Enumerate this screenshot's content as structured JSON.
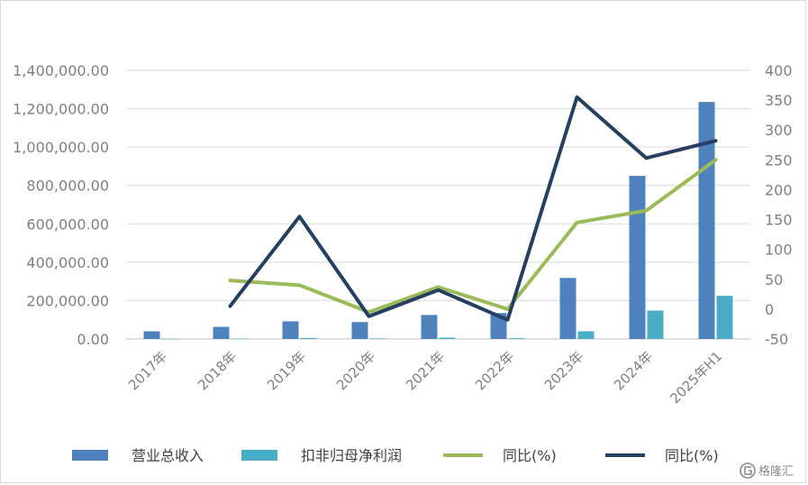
{
  "chart_data": {
    "type": "bar",
    "categories": [
      "2017年",
      "2018年",
      "2019年",
      "2020年",
      "2021年",
      "2022年",
      "2023年",
      "2024年",
      "2025年H1"
    ],
    "left_axis": {
      "ylim": [
        0,
        1400000
      ],
      "ticks": [
        "0.00",
        "200,000.00",
        "400,000.00",
        "600,000.00",
        "800,000.00",
        "1,000,000.00",
        "1,200,000.00",
        "1,400,000.00"
      ],
      "tick_values": [
        0,
        200000,
        400000,
        600000,
        800000,
        1000000,
        1200000,
        1400000
      ]
    },
    "right_axis": {
      "ylim": [
        -50,
        400
      ],
      "ticks": [
        "-50",
        "0",
        "50",
        "100",
        "150",
        "200",
        "250",
        "300",
        "350",
        "400"
      ],
      "tick_values": [
        -50,
        0,
        50,
        100,
        150,
        200,
        250,
        300,
        350,
        400
      ]
    },
    "series": [
      {
        "name": "营业总收入",
        "kind": "bar",
        "axis": "left",
        "color": "#4f81bd",
        "values": [
          40000,
          63000,
          92000,
          88000,
          125000,
          135000,
          318000,
          850000,
          1235000
        ]
      },
      {
        "name": "扣非归母净利润",
        "kind": "bar",
        "axis": "left",
        "color": "#4bacc6",
        "values": [
          1000,
          2000,
          5000,
          3000,
          7000,
          4000,
          40000,
          148000,
          225000
        ]
      },
      {
        "name": "同比(%)",
        "kind": "line",
        "axis": "right",
        "color": "#9bbb59",
        "values": [
          null,
          48,
          40,
          -5,
          37,
          0,
          145,
          165,
          250
        ]
      },
      {
        "name": "同比(%)",
        "kind": "line",
        "axis": "right",
        "color": "#243f60",
        "values": [
          null,
          5,
          155,
          -12,
          32,
          -18,
          355,
          253,
          282
        ]
      }
    ],
    "grid": true,
    "legend_position": "bottom"
  },
  "legend": [
    {
      "label": "营业总收入",
      "kind": "bar",
      "color": "#4f81bd"
    },
    {
      "label": "扣非归母净利润",
      "kind": "bar",
      "color": "#4bacc6"
    },
    {
      "label": "同比(%)",
      "kind": "line",
      "color": "#9bbb59"
    },
    {
      "label": "同比(%)",
      "kind": "line",
      "color": "#243f60"
    }
  ],
  "watermark": {
    "text": "格隆汇",
    "icon": "gelonghui-logo-icon"
  }
}
